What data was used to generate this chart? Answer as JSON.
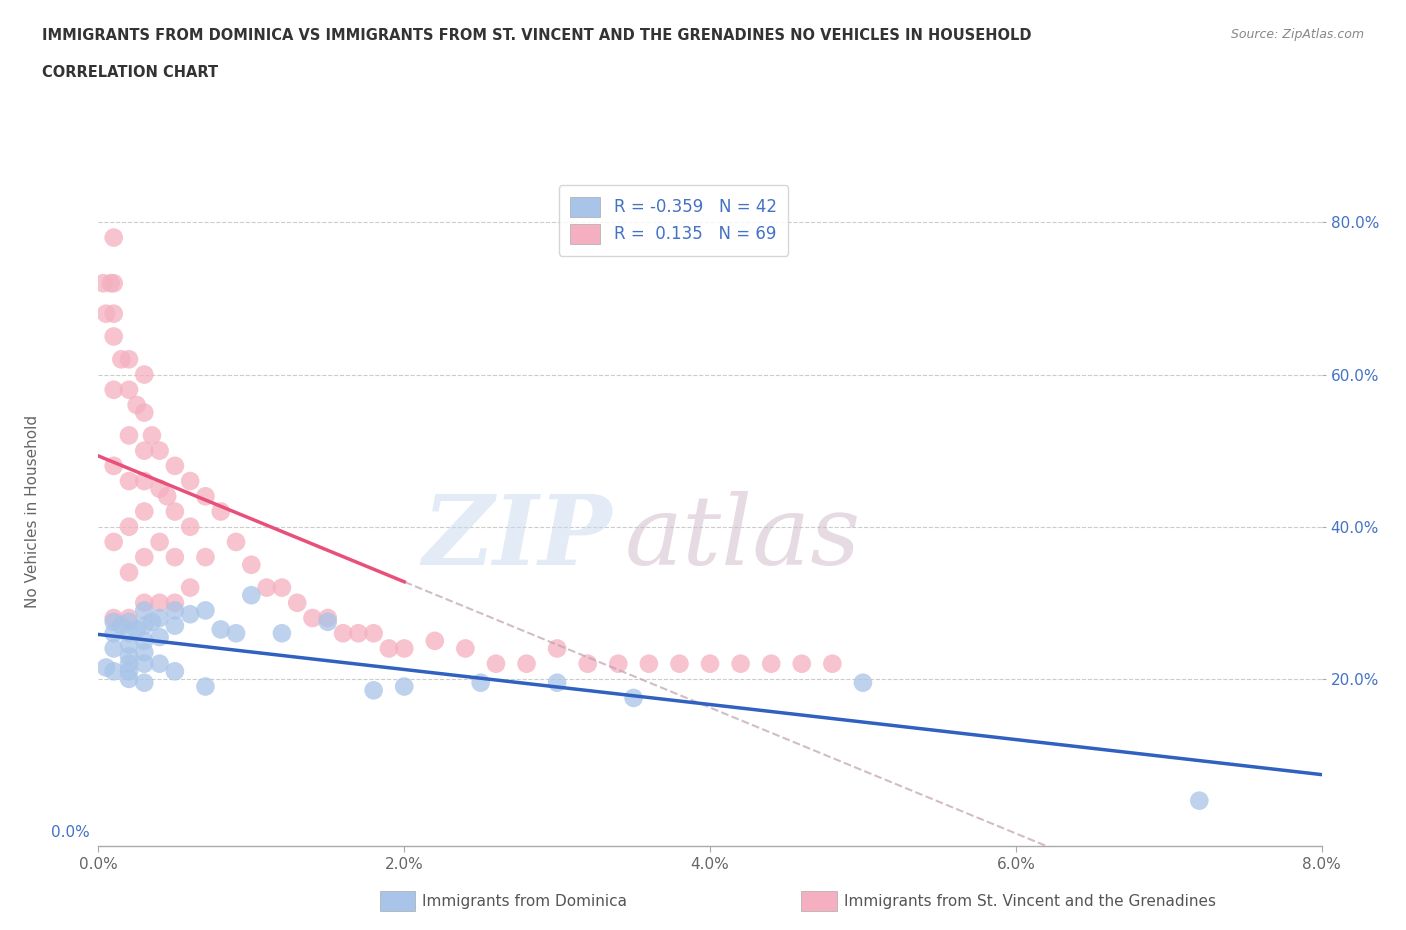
{
  "title_line1": "IMMIGRANTS FROM DOMINICA VS IMMIGRANTS FROM ST. VINCENT AND THE GRENADINES NO VEHICLES IN HOUSEHOLD",
  "title_line2": "CORRELATION CHART",
  "source_text": "Source: ZipAtlas.com",
  "ylabel": "No Vehicles in Household",
  "legend_label1": "Immigrants from Dominica",
  "legend_label2": "Immigrants from St. Vincent and the Grenadines",
  "R1": -0.359,
  "N1": 42,
  "R2": 0.135,
  "N2": 69,
  "color1": "#a8c4e8",
  "color2": "#f4afc0",
  "line_color1": "#3060c0",
  "line_color2": "#e8507a",
  "line_color2_dashed": "#c0a0b0",
  "xlim": [
    0.0,
    0.08
  ],
  "ylim": [
    -0.02,
    0.86
  ],
  "xticks": [
    0.0,
    0.02,
    0.04,
    0.06,
    0.08
  ],
  "xticklabels": [
    "0.0%",
    "2.0%",
    "4.0%",
    "6.0%",
    "8.0%"
  ],
  "yticks_left": [
    0.0
  ],
  "yticklabels_left": [
    "0.0%"
  ],
  "yticks_right": [
    0.2,
    0.4,
    0.6,
    0.8
  ],
  "yticklabels_right": [
    "20.0%",
    "40.0%",
    "60.0%",
    "80.0%"
  ],
  "grid_color": "#cccccc",
  "background_color": "#ffffff",
  "scatter1_x": [
    0.0005,
    0.001,
    0.001,
    0.001,
    0.001,
    0.0015,
    0.002,
    0.002,
    0.002,
    0.002,
    0.002,
    0.002,
    0.002,
    0.0025,
    0.003,
    0.003,
    0.003,
    0.003,
    0.003,
    0.003,
    0.0035,
    0.004,
    0.004,
    0.004,
    0.005,
    0.005,
    0.005,
    0.006,
    0.007,
    0.007,
    0.008,
    0.009,
    0.01,
    0.012,
    0.015,
    0.018,
    0.02,
    0.025,
    0.03,
    0.035,
    0.05,
    0.072
  ],
  "scatter1_y": [
    0.215,
    0.275,
    0.26,
    0.24,
    0.21,
    0.27,
    0.275,
    0.26,
    0.245,
    0.23,
    0.22,
    0.21,
    0.2,
    0.265,
    0.29,
    0.27,
    0.25,
    0.235,
    0.22,
    0.195,
    0.275,
    0.28,
    0.255,
    0.22,
    0.29,
    0.27,
    0.21,
    0.285,
    0.29,
    0.19,
    0.265,
    0.26,
    0.31,
    0.26,
    0.275,
    0.185,
    0.19,
    0.195,
    0.195,
    0.175,
    0.195,
    0.04
  ],
  "scatter2_x": [
    0.0003,
    0.0005,
    0.0008,
    0.001,
    0.001,
    0.001,
    0.001,
    0.001,
    0.001,
    0.001,
    0.001,
    0.0015,
    0.002,
    0.002,
    0.002,
    0.002,
    0.002,
    0.002,
    0.002,
    0.0025,
    0.003,
    0.003,
    0.003,
    0.003,
    0.003,
    0.003,
    0.003,
    0.0035,
    0.004,
    0.004,
    0.004,
    0.004,
    0.0045,
    0.005,
    0.005,
    0.005,
    0.005,
    0.006,
    0.006,
    0.006,
    0.007,
    0.007,
    0.008,
    0.009,
    0.01,
    0.011,
    0.012,
    0.013,
    0.014,
    0.015,
    0.016,
    0.017,
    0.018,
    0.019,
    0.02,
    0.022,
    0.024,
    0.026,
    0.028,
    0.03,
    0.032,
    0.034,
    0.036,
    0.038,
    0.04,
    0.042,
    0.044,
    0.046,
    0.048
  ],
  "scatter2_y": [
    0.72,
    0.68,
    0.72,
    0.78,
    0.72,
    0.68,
    0.65,
    0.58,
    0.48,
    0.38,
    0.28,
    0.62,
    0.62,
    0.58,
    0.52,
    0.46,
    0.4,
    0.34,
    0.28,
    0.56,
    0.6,
    0.55,
    0.5,
    0.46,
    0.42,
    0.36,
    0.3,
    0.52,
    0.5,
    0.45,
    0.38,
    0.3,
    0.44,
    0.48,
    0.42,
    0.36,
    0.3,
    0.46,
    0.4,
    0.32,
    0.44,
    0.36,
    0.42,
    0.38,
    0.35,
    0.32,
    0.32,
    0.3,
    0.28,
    0.28,
    0.26,
    0.26,
    0.26,
    0.24,
    0.24,
    0.25,
    0.24,
    0.22,
    0.22,
    0.24,
    0.22,
    0.22,
    0.22,
    0.22,
    0.22,
    0.22,
    0.22,
    0.22,
    0.22
  ]
}
